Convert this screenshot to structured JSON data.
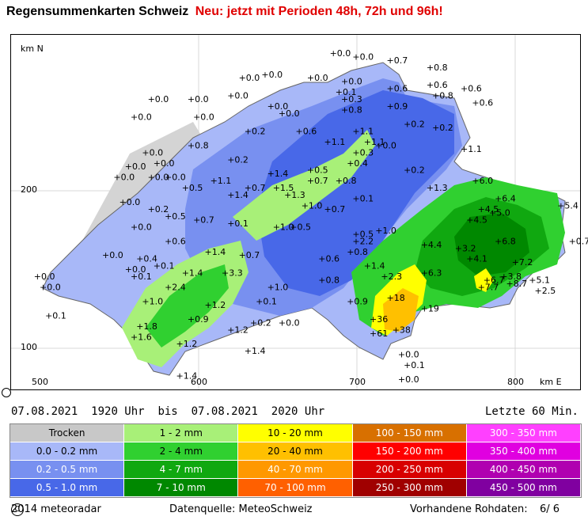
{
  "header": {
    "title": "Regensummenkarten Schweiz",
    "notice": "Neu: jetzt mit Perioden 48h, 72h und 96h!"
  },
  "map": {
    "axis_y_label": "km N",
    "axis_x_label": "km E",
    "y_ticks": [
      "200",
      "100"
    ],
    "x_ticks": [
      "500",
      "600",
      "700",
      "800"
    ],
    "stations": [
      {
        "v": "+0.0",
        "x": 0.56,
        "y": 0.06
      },
      {
        "v": "+0.0",
        "x": 0.6,
        "y": 0.07
      },
      {
        "v": "+0.7",
        "x": 0.66,
        "y": 0.08
      },
      {
        "v": "+0.8",
        "x": 0.73,
        "y": 0.1
      },
      {
        "v": "+0.0",
        "x": 0.44,
        "y": 0.12
      },
      {
        "v": "+0.0",
        "x": 0.4,
        "y": 0.13
      },
      {
        "v": "+0.0",
        "x": 0.52,
        "y": 0.13
      },
      {
        "v": "+0.0",
        "x": 0.58,
        "y": 0.14
      },
      {
        "v": "+0.6",
        "x": 0.66,
        "y": 0.16
      },
      {
        "v": "+0.6",
        "x": 0.73,
        "y": 0.15
      },
      {
        "v": "+0.6",
        "x": 0.79,
        "y": 0.16
      },
      {
        "v": "+0.0",
        "x": 0.24,
        "y": 0.19
      },
      {
        "v": "+0.0",
        "x": 0.31,
        "y": 0.19
      },
      {
        "v": "+0.0",
        "x": 0.38,
        "y": 0.18
      },
      {
        "v": "+0.1",
        "x": 0.57,
        "y": 0.17
      },
      {
        "v": "+0.3",
        "x": 0.58,
        "y": 0.19
      },
      {
        "v": "+0.8",
        "x": 0.74,
        "y": 0.18
      },
      {
        "v": "+0.6",
        "x": 0.81,
        "y": 0.2
      },
      {
        "v": "+0.0",
        "x": 0.45,
        "y": 0.21
      },
      {
        "v": "+0.0",
        "x": 0.47,
        "y": 0.23
      },
      {
        "v": "+0.8",
        "x": 0.58,
        "y": 0.22
      },
      {
        "v": "+0.9",
        "x": 0.66,
        "y": 0.21
      },
      {
        "v": "+0.0",
        "x": 0.32,
        "y": 0.24
      },
      {
        "v": "+0.0",
        "x": 0.21,
        "y": 0.24
      },
      {
        "v": "+0.2",
        "x": 0.69,
        "y": 0.26
      },
      {
        "v": "+0.2",
        "x": 0.74,
        "y": 0.27
      },
      {
        "v": "+0.2",
        "x": 0.41,
        "y": 0.28
      },
      {
        "v": "+0.6",
        "x": 0.5,
        "y": 0.28
      },
      {
        "v": "+1.1",
        "x": 0.6,
        "y": 0.28
      },
      {
        "v": "+1.1",
        "x": 0.55,
        "y": 0.31
      },
      {
        "v": "+1.1",
        "x": 0.62,
        "y": 0.31
      },
      {
        "v": "+0.0",
        "x": 0.64,
        "y": 0.32
      },
      {
        "v": "+0.0",
        "x": 0.23,
        "y": 0.34
      },
      {
        "v": "+0.8",
        "x": 0.31,
        "y": 0.32
      },
      {
        "v": "+0.3",
        "x": 0.6,
        "y": 0.34
      },
      {
        "v": "+1.1",
        "x": 0.79,
        "y": 0.33
      },
      {
        "v": "+0.0",
        "x": 0.25,
        "y": 0.37
      },
      {
        "v": "+0.0",
        "x": 0.2,
        "y": 0.38
      },
      {
        "v": "+0.2",
        "x": 0.38,
        "y": 0.36
      },
      {
        "v": "+0.4",
        "x": 0.59,
        "y": 0.37
      },
      {
        "v": "+0.0",
        "x": 0.18,
        "y": 0.41
      },
      {
        "v": "+0.0",
        "x": 0.24,
        "y": 0.41
      },
      {
        "v": "+0.0",
        "x": 0.27,
        "y": 0.41
      },
      {
        "v": "+0.5",
        "x": 0.52,
        "y": 0.39
      },
      {
        "v": "+0.2",
        "x": 0.69,
        "y": 0.39
      },
      {
        "v": "+1.4",
        "x": 0.45,
        "y": 0.4
      },
      {
        "v": "+0.7",
        "x": 0.52,
        "y": 0.42
      },
      {
        "v": "+0.8",
        "x": 0.57,
        "y": 0.42
      },
      {
        "v": "+1.1",
        "x": 0.35,
        "y": 0.42
      },
      {
        "v": "+6.0",
        "x": 0.81,
        "y": 0.42
      },
      {
        "v": "+0.5",
        "x": 0.3,
        "y": 0.44
      },
      {
        "v": "+0.7",
        "x": 0.41,
        "y": 0.44
      },
      {
        "v": "+1.5",
        "x": 0.46,
        "y": 0.44
      },
      {
        "v": "+1.3",
        "x": 0.73,
        "y": 0.44
      },
      {
        "v": "+1.3",
        "x": 0.48,
        "y": 0.46
      },
      {
        "v": "+1.4",
        "x": 0.38,
        "y": 0.46
      },
      {
        "v": "+0.1",
        "x": 0.6,
        "y": 0.47
      },
      {
        "v": "+6.4",
        "x": 0.85,
        "y": 0.47
      },
      {
        "v": "+0.0",
        "x": 0.19,
        "y": 0.48
      },
      {
        "v": "+1.0",
        "x": 0.51,
        "y": 0.49
      },
      {
        "v": "+0.7",
        "x": 0.55,
        "y": 0.5
      },
      {
        "v": "+5.4",
        "x": 0.96,
        "y": 0.49
      },
      {
        "v": "+0.2",
        "x": 0.24,
        "y": 0.5
      },
      {
        "v": "+4.5",
        "x": 0.82,
        "y": 0.5
      },
      {
        "v": "+5.0",
        "x": 0.84,
        "y": 0.51
      },
      {
        "v": "+0.5",
        "x": 0.27,
        "y": 0.52
      },
      {
        "v": "+0.7",
        "x": 0.32,
        "y": 0.53
      },
      {
        "v": "+4.5",
        "x": 0.8,
        "y": 0.53
      },
      {
        "v": "+0.1",
        "x": 0.38,
        "y": 0.54
      },
      {
        "v": "+0.0",
        "x": 0.21,
        "y": 0.55
      },
      {
        "v": "+1.0",
        "x": 0.46,
        "y": 0.55
      },
      {
        "v": "+0.5",
        "x": 0.49,
        "y": 0.55
      },
      {
        "v": "+1.0",
        "x": 0.64,
        "y": 0.56
      },
      {
        "v": "+0.5",
        "x": 0.6,
        "y": 0.57
      },
      {
        "v": "+2.2",
        "x": 0.6,
        "y": 0.59
      },
      {
        "v": "+0.6",
        "x": 0.27,
        "y": 0.59
      },
      {
        "v": "+6.8",
        "x": 0.85,
        "y": 0.59
      },
      {
        "v": "+0.7",
        "x": 0.98,
        "y": 0.59
      },
      {
        "v": "+4.4",
        "x": 0.72,
        "y": 0.6
      },
      {
        "v": "+3.2",
        "x": 0.78,
        "y": 0.61
      },
      {
        "v": "+0.8",
        "x": 0.59,
        "y": 0.62
      },
      {
        "v": "+1.4",
        "x": 0.34,
        "y": 0.62
      },
      {
        "v": "+0.7",
        "x": 0.4,
        "y": 0.63
      },
      {
        "v": "+0.0",
        "x": 0.16,
        "y": 0.63
      },
      {
        "v": "+0.4",
        "x": 0.22,
        "y": 0.64
      },
      {
        "v": "+4.1",
        "x": 0.8,
        "y": 0.64
      },
      {
        "v": "+7.2",
        "x": 0.88,
        "y": 0.65
      },
      {
        "v": "+0.6",
        "x": 0.54,
        "y": 0.64
      },
      {
        "v": "+0.1",
        "x": 0.25,
        "y": 0.66
      },
      {
        "v": "+1.4",
        "x": 0.62,
        "y": 0.66
      },
      {
        "v": "+0.0",
        "x": 0.2,
        "y": 0.67
      },
      {
        "v": "+1.4",
        "x": 0.3,
        "y": 0.68
      },
      {
        "v": "+3.3",
        "x": 0.37,
        "y": 0.68
      },
      {
        "v": "+0.1",
        "x": 0.21,
        "y": 0.69
      },
      {
        "v": "+6.3",
        "x": 0.72,
        "y": 0.68
      },
      {
        "v": "+0.8",
        "x": 0.54,
        "y": 0.7
      },
      {
        "v": "+2.3",
        "x": 0.65,
        "y": 0.69
      },
      {
        "v": "+6.7",
        "x": 0.83,
        "y": 0.7
      },
      {
        "v": "+3.8",
        "x": 0.86,
        "y": 0.69
      },
      {
        "v": "+8.7",
        "x": 0.87,
        "y": 0.71
      },
      {
        "v": "+5.1",
        "x": 0.91,
        "y": 0.7
      },
      {
        "v": "+0.0",
        "x": 0.04,
        "y": 0.69
      },
      {
        "v": "+0.0",
        "x": 0.05,
        "y": 0.72
      },
      {
        "v": "+1.0",
        "x": 0.45,
        "y": 0.72
      },
      {
        "v": "+2.4",
        "x": 0.27,
        "y": 0.72
      },
      {
        "v": "+7.7",
        "x": 0.82,
        "y": 0.72
      },
      {
        "v": "+2.5",
        "x": 0.92,
        "y": 0.73
      },
      {
        "v": "+18",
        "x": 0.66,
        "y": 0.75
      },
      {
        "v": "+0.9",
        "x": 0.59,
        "y": 0.76
      },
      {
        "v": "+1.0",
        "x": 0.23,
        "y": 0.76
      },
      {
        "v": "+0.1",
        "x": 0.43,
        "y": 0.76
      },
      {
        "v": "+1.2",
        "x": 0.34,
        "y": 0.77
      },
      {
        "v": "+19",
        "x": 0.72,
        "y": 0.78
      },
      {
        "v": "+0.1",
        "x": 0.06,
        "y": 0.8
      },
      {
        "v": "+0.9",
        "x": 0.31,
        "y": 0.81
      },
      {
        "v": "+36",
        "x": 0.63,
        "y": 0.81
      },
      {
        "v": "+0.2",
        "x": 0.42,
        "y": 0.82
      },
      {
        "v": "+0.0",
        "x": 0.47,
        "y": 0.82
      },
      {
        "v": "+1.8",
        "x": 0.22,
        "y": 0.83
      },
      {
        "v": "+38",
        "x": 0.67,
        "y": 0.84
      },
      {
        "v": "+1.2",
        "x": 0.38,
        "y": 0.84
      },
      {
        "v": "+61",
        "x": 0.63,
        "y": 0.85
      },
      {
        "v": "+1.6",
        "x": 0.21,
        "y": 0.86
      },
      {
        "v": "+1.2",
        "x": 0.29,
        "y": 0.88
      },
      {
        "v": "+1.4",
        "x": 0.41,
        "y": 0.9
      },
      {
        "v": "+0.0",
        "x": 0.68,
        "y": 0.91
      },
      {
        "v": "+0.1",
        "x": 0.69,
        "y": 0.94
      },
      {
        "v": "+0.0",
        "x": 0.68,
        "y": 0.98
      },
      {
        "v": "+1.4",
        "x": 0.29,
        "y": 0.97
      }
    ]
  },
  "period": {
    "from_date": "07.08.2021",
    "from_time": "1920 Uhr",
    "sep": "bis",
    "to_date": "07.08.2021",
    "to_time": "2020 Uhr",
    "last_label": "Letzte 60 Min."
  },
  "legend": [
    {
      "label": "Trocken",
      "color": "#c8c8c8"
    },
    {
      "label": "1 - 2 mm",
      "color": "#a8f078"
    },
    {
      "label": "10 - 20 mm",
      "color": "#ffff00"
    },
    {
      "label": "100 - 150 mm",
      "color": "#d87000"
    },
    {
      "label": "300 - 350 mm",
      "color": "#ff40ff"
    },
    {
      "label": "0.0 - 0.2 mm",
      "color": "#a8b8f8"
    },
    {
      "label": "2 - 4 mm",
      "color": "#30d030"
    },
    {
      "label": "20 - 40 mm",
      "color": "#ffc000"
    },
    {
      "label": "150 - 200 mm",
      "color": "#ff0000"
    },
    {
      "label": "350 - 400 mm",
      "color": "#e000e0"
    },
    {
      "label": "0.2 - 0.5 mm",
      "color": "#7890f0"
    },
    {
      "label": "4 - 7 mm",
      "color": "#10a810"
    },
    {
      "label": "40 - 70 mm",
      "color": "#ff9800"
    },
    {
      "label": "200 - 250 mm",
      "color": "#d80000"
    },
    {
      "label": "400 - 450 mm",
      "color": "#b000b0"
    },
    {
      "label": "0.5 - 1.0 mm",
      "color": "#4868e8"
    },
    {
      "label": "7 - 10 mm",
      "color": "#008800"
    },
    {
      "label": "70 - 100 mm",
      "color": "#ff6000"
    },
    {
      "label": "250 - 300 mm",
      "color": "#a00000"
    },
    {
      "label": "450 - 500 mm",
      "color": "#8000a0"
    }
  ],
  "footer": {
    "copyright_symbol": "C",
    "copyright": "2014 meteoradar",
    "source": "Datenquelle: MeteoSchweiz",
    "raw_label": "Vorhandene Rohdaten:",
    "raw_value": "6/ 6"
  }
}
